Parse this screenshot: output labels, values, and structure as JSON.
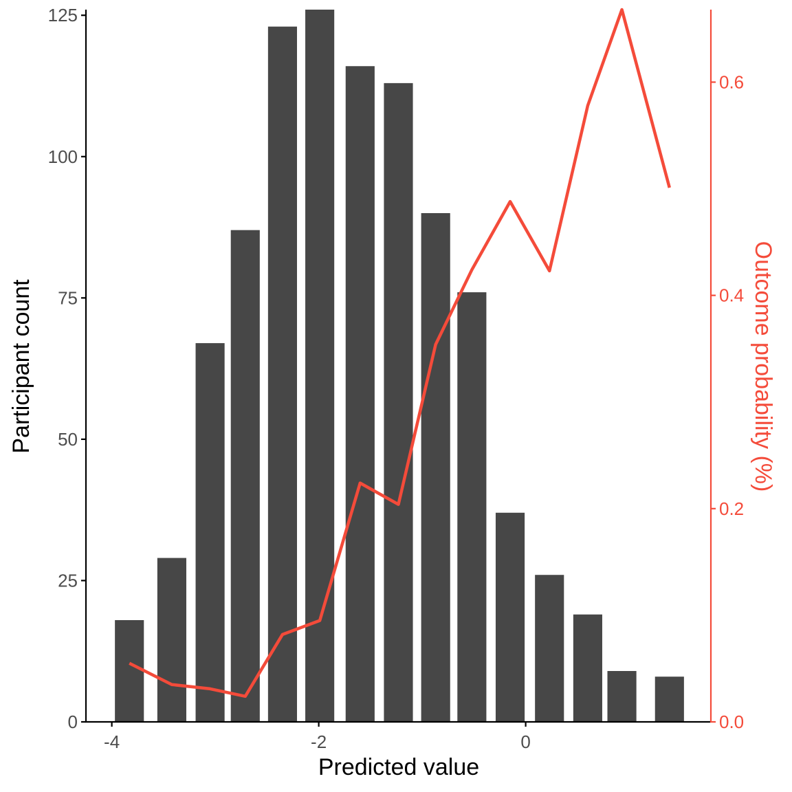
{
  "chart_data": {
    "type": "bar",
    "xlabel": "Predicted value",
    "ylabel": "Participant count",
    "y2label": "Outcome probability (%)",
    "xlim": [
      -4.25,
      1.79
    ],
    "ylim": [
      0,
      126
    ],
    "y2lim": [
      0,
      0.668
    ],
    "xticks": [
      -4,
      -2,
      0
    ],
    "xtick_labels": [
      "-4",
      "-2",
      "0"
    ],
    "yticks": [
      0,
      25,
      50,
      75,
      100,
      125
    ],
    "ytick_labels": [
      "0",
      "25",
      "50",
      "75",
      "100",
      "125"
    ],
    "y2ticks": [
      0.0,
      0.2,
      0.4,
      0.6
    ],
    "y2tick_labels": [
      "0.0",
      "0.2",
      "0.4",
      "0.6"
    ],
    "grid": false,
    "legend": "none",
    "bar_series": {
      "name": "",
      "color": "#474747",
      "bars": [
        {
          "x": -3.83,
          "width": 0.28,
          "value": 18
        },
        {
          "x": -3.42,
          "width": 0.28,
          "value": 29
        },
        {
          "x": -3.05,
          "width": 0.28,
          "value": 67
        },
        {
          "x": -2.71,
          "width": 0.28,
          "value": 87
        },
        {
          "x": -2.35,
          "width": 0.28,
          "value": 123
        },
        {
          "x": -1.99,
          "width": 0.28,
          "value": 126
        },
        {
          "x": -1.6,
          "width": 0.28,
          "value": 116
        },
        {
          "x": -1.23,
          "width": 0.28,
          "value": 113
        },
        {
          "x": -0.87,
          "width": 0.28,
          "value": 90
        },
        {
          "x": -0.52,
          "width": 0.28,
          "value": 76
        },
        {
          "x": -0.15,
          "width": 0.28,
          "value": 37
        },
        {
          "x": 0.23,
          "width": 0.28,
          "value": 26
        },
        {
          "x": 0.6,
          "width": 0.28,
          "value": 19
        },
        {
          "x": 0.93,
          "width": 0.28,
          "value": 9
        },
        {
          "x": 1.39,
          "width": 0.28,
          "value": 8
        }
      ]
    },
    "line_series": {
      "name": "",
      "color": "#f44b3a",
      "axis": "right",
      "x": [
        -3.83,
        -3.42,
        -3.05,
        -2.71,
        -2.35,
        -1.99,
        -1.6,
        -1.23,
        -0.87,
        -0.52,
        -0.15,
        0.23,
        0.6,
        0.93,
        1.39
      ],
      "values": [
        0.055,
        0.035,
        0.031,
        0.024,
        0.082,
        0.095,
        0.224,
        0.204,
        0.354,
        0.424,
        0.488,
        0.423,
        0.578,
        0.668,
        0.501
      ]
    }
  },
  "colors": {
    "axis": "#000000",
    "tick_text": "#4d4d4d",
    "bar": "#474747",
    "accent": "#f44b3a"
  }
}
